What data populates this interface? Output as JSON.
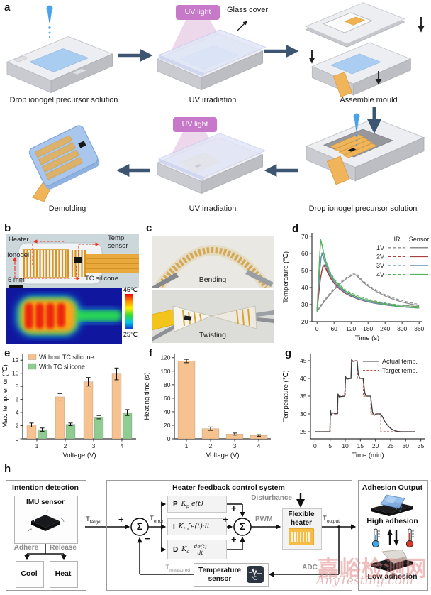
{
  "panels": {
    "a": {
      "label": "a",
      "captions": [
        "Drop ionogel precursor solution",
        "UV irradiation",
        "Assemble mould",
        "Drop ionogel precursor solution",
        "UV irradiation",
        "Demolding"
      ],
      "uv_badge": "UV light",
      "glass_cover": "Glass cover",
      "uv_badge_color": "#c878c8"
    },
    "b": {
      "label": "b",
      "heater": "Heater",
      "temp_sensor_1": "Temp.",
      "temp_sensor_2": "sensor",
      "ionogel": "Ionogel",
      "tc_silicone": "TC silicone",
      "scale_bar": "5 mm",
      "colorbar_max": "45℃",
      "colorbar_min": "25℃"
    },
    "c": {
      "label": "c",
      "photo_top": "Bending",
      "photo_bottom": "Twisting"
    },
    "d": {
      "label": "d"
    },
    "e": {
      "label": "e"
    },
    "f": {
      "label": "f"
    },
    "g": {
      "label": "g"
    },
    "h": {
      "label": "h",
      "intention": {
        "title": "Intention detection",
        "imu": "IMU sensor",
        "adhere": "Adhere",
        "release": "Release",
        "cool": "Cool",
        "heat": "Heat"
      },
      "control": {
        "title": "Heater feedback control system",
        "sigma": "Σ",
        "plus": "+",
        "minus": "−",
        "t_target": {
          "base": "T",
          "sub": "target"
        },
        "t_error": {
          "base": "T",
          "sub": "error"
        },
        "t_output": {
          "base": "T",
          "sub": "output"
        },
        "t_measured": {
          "base": "T",
          "sub": "measured"
        },
        "pwm": "PWM",
        "disturbance": "Disturbance",
        "adc": "ADC",
        "pid": [
          {
            "symbol": "P",
            "coef": "K",
            "sub": "p",
            "expr": "e(t)"
          },
          {
            "symbol": "I",
            "coef": "K",
            "sub": "i",
            "expr": "∫e(t)dt"
          },
          {
            "symbol": "D",
            "coef": "K",
            "sub": "d",
            "frac_num": "de(t)",
            "frac_den": "dt"
          }
        ],
        "heater_1": "Flexible",
        "heater_2": "heater",
        "sensor_1": "Temperature",
        "sensor_2": "sensor"
      },
      "output": {
        "title": "Adhesion Output",
        "high": "High adhesion",
        "low": "Low adhesion"
      }
    }
  },
  "watermark": {
    "line1": "嘉峪检测网",
    "line2": "AnyTesting.com"
  },
  "chart_data": [
    {
      "id": "d",
      "type": "line",
      "xlabel": "Time (s)",
      "ylabel": "Temperature (℃)",
      "xlim": [
        -18,
        372
      ],
      "ylim": [
        20,
        72
      ],
      "xticks": [
        0,
        60,
        120,
        180,
        240,
        300,
        360
      ],
      "yticks": [
        20,
        30,
        40,
        50,
        60,
        70
      ],
      "grid": false,
      "legend": {
        "type": "dual",
        "columns": [
          "IR",
          "Sensor"
        ]
      },
      "ir_offset": 0.8,
      "series": [
        {
          "name": "1V",
          "color": "#8c8c8c",
          "ir_twin": true,
          "points": [
            [
              0,
              26
            ],
            [
              20,
              30.5
            ],
            [
              40,
              34.8
            ],
            [
              60,
              38.6
            ],
            [
              80,
              42
            ],
            [
              100,
              44.8
            ],
            [
              120,
              46.8
            ],
            [
              130,
              47.6
            ],
            [
              138,
              47.3
            ],
            [
              150,
              45.2
            ],
            [
              165,
              42.8
            ],
            [
              180,
              40.8
            ],
            [
              210,
              37.6
            ],
            [
              240,
              35
            ],
            [
              270,
              33
            ],
            [
              300,
              31.5
            ],
            [
              330,
              30.3
            ],
            [
              360,
              29.3
            ]
          ]
        },
        {
          "name": "2V",
          "color": "#a8413d",
          "ir_twin": true,
          "points": [
            [
              0,
              26
            ],
            [
              6,
              36
            ],
            [
              12,
              45
            ],
            [
              18,
              50.5
            ],
            [
              23,
              52.8
            ],
            [
              28,
              52
            ],
            [
              38,
              48.5
            ],
            [
              50,
              44.8
            ],
            [
              65,
              41.5
            ],
            [
              80,
              39
            ],
            [
              100,
              36.6
            ],
            [
              120,
              34.8
            ],
            [
              145,
              33.2
            ],
            [
              170,
              32
            ],
            [
              200,
              30.9
            ],
            [
              230,
              30
            ],
            [
              260,
              29.4
            ],
            [
              290,
              28.9
            ],
            [
              325,
              28.4
            ],
            [
              360,
              28
            ]
          ]
        },
        {
          "name": "3V",
          "color": "#6590b5",
          "ir_twin": true,
          "points": [
            [
              0,
              26
            ],
            [
              5,
              38
            ],
            [
              10,
              50
            ],
            [
              14,
              57
            ],
            [
              17,
              59.6
            ],
            [
              21,
              58.5
            ],
            [
              30,
              53.5
            ],
            [
              42,
              48.5
            ],
            [
              55,
              44.5
            ],
            [
              70,
              41.3
            ],
            [
              90,
              38.2
            ],
            [
              110,
              36
            ],
            [
              135,
              34
            ],
            [
              160,
              32.6
            ],
            [
              190,
              31.3
            ],
            [
              220,
              30.3
            ],
            [
              250,
              29.6
            ],
            [
              280,
              29
            ],
            [
              320,
              28.4
            ],
            [
              360,
              28
            ]
          ]
        },
        {
          "name": "4V",
          "color": "#53b25f",
          "ir_twin": true,
          "points": [
            [
              0,
              26
            ],
            [
              4,
              40
            ],
            [
              8,
              54
            ],
            [
              11,
              63
            ],
            [
              13,
              67.3
            ],
            [
              16,
              66
            ],
            [
              24,
              59.5
            ],
            [
              34,
              53.5
            ],
            [
              46,
              48.5
            ],
            [
              60,
              44.5
            ],
            [
              78,
              41
            ],
            [
              98,
              38.2
            ],
            [
              120,
              36
            ],
            [
              145,
              34.2
            ],
            [
              170,
              32.8
            ],
            [
              200,
              31.5
            ],
            [
              230,
              30.4
            ],
            [
              260,
              29.6
            ],
            [
              295,
              28.9
            ],
            [
              330,
              28.4
            ],
            [
              360,
              28
            ]
          ]
        }
      ]
    },
    {
      "id": "e",
      "type": "grouped_bar",
      "xlabel": "Voltage (V)",
      "ylabel": "Max. temp. error (℃)",
      "categories": [
        "1",
        "2",
        "3",
        "4"
      ],
      "ylim": [
        0,
        13
      ],
      "yticks": [
        0,
        2,
        4,
        6,
        8,
        10,
        12
      ],
      "legend_position": "top-left",
      "series": [
        {
          "name": "Without TC silicone",
          "color": "#f6c28f",
          "values": [
            2.1,
            6.4,
            8.7,
            9.9
          ],
          "errors": [
            0.3,
            0.5,
            0.65,
            0.9
          ]
        },
        {
          "name": "With TC silicone",
          "color": "#90cb92",
          "values": [
            1.4,
            2.2,
            3.3,
            4.0
          ],
          "errors": [
            0.25,
            0.2,
            0.25,
            0.45
          ]
        }
      ]
    },
    {
      "id": "f",
      "type": "bar",
      "xlabel": "Voltage (V)",
      "ylabel": "Heating time (s)",
      "categories": [
        "1",
        "2",
        "3",
        "4"
      ],
      "ylim": [
        0,
        126
      ],
      "yticks": [
        0,
        20,
        40,
        60,
        80,
        100,
        120
      ],
      "series": [
        {
          "name": "Heating time",
          "color": "#f6c28f",
          "values": [
            115,
            15,
            7,
            5
          ],
          "errors": [
            2.5,
            2.5,
            1.5,
            1.2
          ]
        }
      ]
    },
    {
      "id": "g",
      "type": "line",
      "xlabel": "Time (min)",
      "ylabel": "Temperature (℃)",
      "xlim": [
        -1.5,
        36.5
      ],
      "ylim": [
        23,
        47
      ],
      "xticks": [
        0,
        5,
        10,
        15,
        20,
        25,
        30,
        35
      ],
      "yticks": [
        25,
        30,
        35,
        40,
        45
      ],
      "grid": false,
      "legend": {
        "type": "lines"
      },
      "legend_entries": [
        {
          "label": "Actual temp.",
          "color": "#3c3c3c",
          "dash": false
        },
        {
          "label": "Target temp.",
          "color": "#b5564c",
          "dash": true
        }
      ],
      "series": [
        {
          "name": "Target temp.",
          "color": "#b5564c",
          "dash": true,
          "points": [
            [
              0,
              25
            ],
            [
              5,
              25
            ],
            [
              5,
              30
            ],
            [
              7.5,
              30
            ],
            [
              7.5,
              35
            ],
            [
              10,
              35
            ],
            [
              10,
              40
            ],
            [
              12,
              40
            ],
            [
              12,
              45
            ],
            [
              14,
              45
            ],
            [
              14,
              40
            ],
            [
              16,
              40
            ],
            [
              16,
              35
            ],
            [
              18.5,
              35
            ],
            [
              18.5,
              30
            ],
            [
              21.8,
              30
            ],
            [
              21.8,
              25
            ],
            [
              33,
              25
            ]
          ]
        },
        {
          "name": "Actual temp.",
          "color": "#3c3c3c",
          "dash": false,
          "points": [
            [
              0,
              25
            ],
            [
              4.9,
              25
            ],
            [
              5.1,
              31
            ],
            [
              5.4,
              29.6
            ],
            [
              5.8,
              30.3
            ],
            [
              7.4,
              30
            ],
            [
              7.6,
              35.6
            ],
            [
              8,
              34.8
            ],
            [
              9.8,
              35
            ],
            [
              10.1,
              40.5
            ],
            [
              10.5,
              39.8
            ],
            [
              11.9,
              40
            ],
            [
              12.1,
              45.3
            ],
            [
              12.5,
              44.8
            ],
            [
              13.9,
              45
            ],
            [
              14.3,
              41.2
            ],
            [
              14.8,
              40
            ],
            [
              15.9,
              40
            ],
            [
              16.5,
              35.8
            ],
            [
              17,
              35
            ],
            [
              18.4,
              35
            ],
            [
              19,
              30.6
            ],
            [
              19.6,
              29.6
            ],
            [
              20.2,
              30
            ],
            [
              21.7,
              30
            ],
            [
              22.3,
              29.2
            ],
            [
              23.2,
              27.7
            ],
            [
              24.2,
              26.6
            ],
            [
              25.2,
              25.8
            ],
            [
              26.2,
              25.4
            ],
            [
              27.2,
              25.1
            ],
            [
              28.5,
              25
            ],
            [
              33,
              25
            ]
          ]
        }
      ]
    }
  ]
}
